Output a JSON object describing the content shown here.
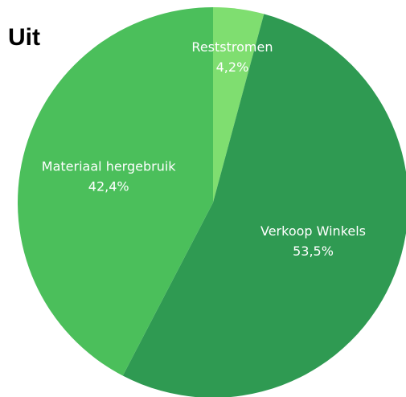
{
  "chart_data": {
    "type": "pie",
    "title": "Uit",
    "categories": [
      "Reststromen",
      "Verkoop Winkels",
      "Materiaal hergebruik"
    ],
    "values": [
      4.2,
      53.5,
      42.4
    ],
    "value_labels": [
      "4,2%",
      "53,5%",
      "42,4%"
    ],
    "colors": [
      "#7fde70",
      "#2f9a52",
      "#4bbf5b"
    ]
  }
}
